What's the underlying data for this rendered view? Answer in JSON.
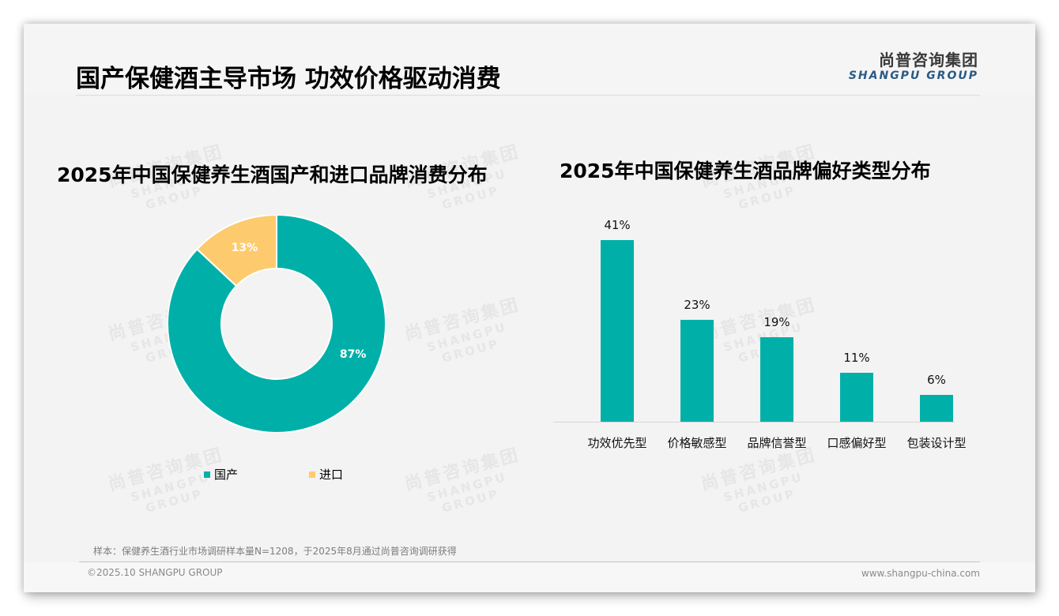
{
  "header": {
    "title": "国产保健酒主导市场 功效价格驱动消费",
    "logo_cn": "尚普咨询集团",
    "logo_en": "SHANGPU GROUP"
  },
  "watermark": {
    "cn": "尚普咨询集团",
    "en": "SHANGPU GROUP"
  },
  "colors": {
    "teal": "#00b0a8",
    "yellow": "#fdcb6e",
    "background": "#f3f3f3"
  },
  "chart_data": [
    {
      "type": "pie",
      "variant": "donut",
      "title": "2025年中国保健养生酒国产和进口品牌消费分布",
      "categories": [
        "国产",
        "进口"
      ],
      "values": [
        87,
        13
      ],
      "labels": [
        "87%",
        "13%"
      ],
      "colors": [
        "#00b0a8",
        "#fdcb6e"
      ],
      "legend_position": "bottom"
    },
    {
      "type": "bar",
      "title": "2025年中国保健养生酒品牌偏好类型分布",
      "categories": [
        "功效优先型",
        "价格敏感型",
        "品牌信誉型",
        "口感偏好型",
        "包装设计型"
      ],
      "values": [
        41,
        23,
        19,
        11,
        6
      ],
      "labels": [
        "41%",
        "23%",
        "19%",
        "11%",
        "6%"
      ],
      "unit": "%",
      "color": "#00b0a8",
      "xlabel": "",
      "ylabel": "",
      "ylim": [
        0,
        41
      ],
      "grid": false,
      "y_axis_visible": false
    }
  ],
  "legend": {
    "items": [
      {
        "label": "国产"
      },
      {
        "label": "进口"
      }
    ]
  },
  "footer": {
    "note": "样本：保健养生酒行业市场调研样本量N=1208，于2025年8月通过尚普咨询调研获得",
    "copyright": "©2025.10 SHANGPU GROUP",
    "website": "www.shangpu-china.com"
  }
}
